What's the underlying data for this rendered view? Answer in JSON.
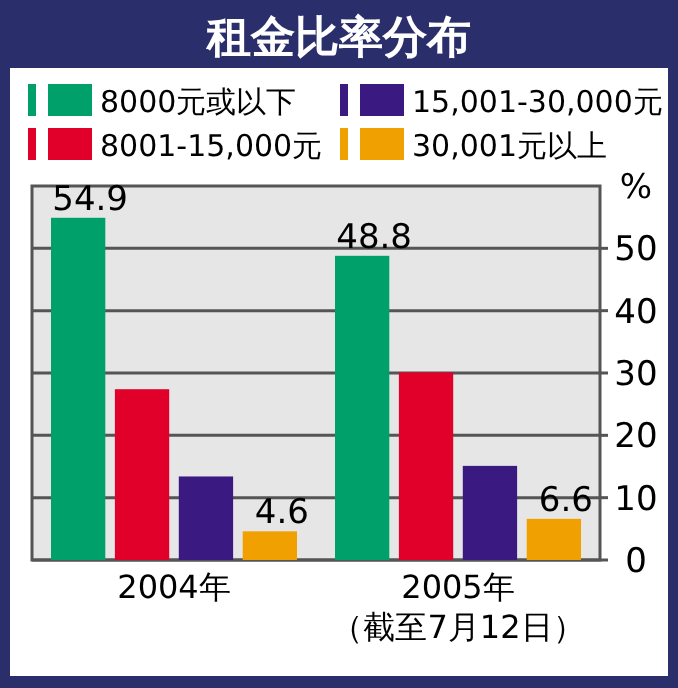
{
  "chart_data": {
    "type": "bar",
    "title": "租金比率分布",
    "ylabel": "%",
    "categories": [
      "2004年",
      "2005年"
    ],
    "annotations": [
      "（截至7月12日）"
    ],
    "series": [
      {
        "name": "8000元或以下",
        "color": "#00a06a",
        "values": [
          54.9,
          48.8
        ],
        "value_labels": [
          "54.9",
          "48.8"
        ]
      },
      {
        "name": "8001-15,000元",
        "color": "#e0002a",
        "values": [
          27.4,
          30.1
        ]
      },
      {
        "name": "15,001-30,000元",
        "color": "#3a1a80",
        "values": [
          13.4,
          15.1
        ]
      },
      {
        "name": "30,001元以上",
        "color": "#f0a000",
        "values": [
          4.6,
          6.6
        ],
        "value_labels": [
          "4.6",
          "6.6"
        ]
      }
    ],
    "ylim": [
      0,
      60
    ],
    "yticks": [
      0,
      10,
      20,
      30,
      40,
      50
    ],
    "grid": "y",
    "legend": "top"
  }
}
